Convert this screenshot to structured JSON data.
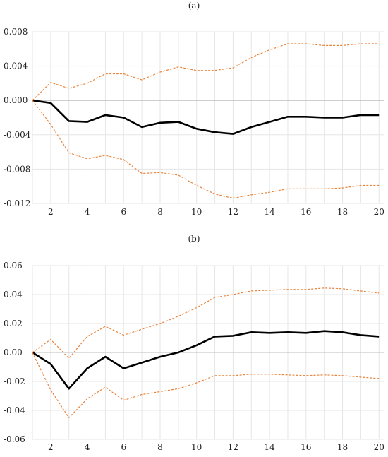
{
  "colors": {
    "response": "#000000",
    "band": "#e8843c",
    "grid": "#e6e6e6",
    "zero_axis": "#bdbdbd"
  },
  "chart_data": [
    {
      "type": "line",
      "title": "(a)",
      "xlabel": "",
      "ylabel": "",
      "x": [
        1,
        2,
        3,
        4,
        5,
        6,
        7,
        8,
        9,
        10,
        11,
        12,
        13,
        14,
        15,
        16,
        17,
        18,
        19,
        20
      ],
      "xticks": [
        2,
        4,
        6,
        8,
        10,
        12,
        14,
        16,
        18,
        20
      ],
      "ylim": [
        -0.012,
        0.008
      ],
      "yticks": [
        0.008,
        0.004,
        0.0,
        -0.004,
        -0.008,
        -0.012
      ],
      "ytick_labels": [
        "0.008",
        "0.004",
        "0.000",
        "-0.004",
        "-0.008",
        "-0.012"
      ],
      "grid": true,
      "series": [
        {
          "style": "solid",
          "color": "#000000",
          "values": [
            0.0,
            -0.0003,
            -0.0024,
            -0.0025,
            -0.0017,
            -0.002,
            -0.0031,
            -0.0026,
            -0.0025,
            -0.0033,
            -0.0037,
            -0.0039,
            -0.0031,
            -0.0025,
            -0.0019,
            -0.0019,
            -0.002,
            -0.002,
            -0.0017,
            -0.0017
          ]
        },
        {
          "style": "dashed",
          "color": "#e8843c",
          "values": [
            0.0,
            0.0021,
            0.0014,
            0.002,
            0.0031,
            0.0031,
            0.0024,
            0.0033,
            0.0039,
            0.0035,
            0.0035,
            0.0038,
            0.005,
            0.0059,
            0.0066,
            0.0066,
            0.0064,
            0.0064,
            0.0066,
            0.0066
          ]
        },
        {
          "style": "dashed",
          "color": "#e8843c",
          "values": [
            0.0,
            -0.0028,
            -0.0061,
            -0.0068,
            -0.0064,
            -0.0069,
            -0.0085,
            -0.0084,
            -0.0087,
            -0.0099,
            -0.0109,
            -0.0114,
            -0.011,
            -0.0107,
            -0.0103,
            -0.0103,
            -0.0103,
            -0.0102,
            -0.0099,
            -0.0099
          ]
        }
      ]
    },
    {
      "type": "line",
      "title": "(b)",
      "xlabel": "",
      "ylabel": "",
      "x": [
        1,
        2,
        3,
        4,
        5,
        6,
        7,
        8,
        9,
        10,
        11,
        12,
        13,
        14,
        15,
        16,
        17,
        18,
        19,
        20
      ],
      "xticks": [
        2,
        4,
        6,
        8,
        10,
        12,
        14,
        16,
        18,
        20
      ],
      "ylim": [
        -0.06,
        0.06
      ],
      "yticks": [
        0.06,
        0.04,
        0.02,
        0.0,
        -0.02,
        -0.04,
        -0.06
      ],
      "ytick_labels": [
        "0.06",
        "0.04",
        "0.02",
        "0.00",
        "-0.02",
        "-0.04",
        "-0.06"
      ],
      "grid": true,
      "series": [
        {
          "style": "solid",
          "color": "#000000",
          "values": [
            0.0,
            -0.008,
            -0.025,
            -0.011,
            -0.003,
            -0.011,
            -0.007,
            -0.003,
            0.0,
            0.005,
            0.011,
            0.0115,
            0.014,
            0.0135,
            0.014,
            0.0135,
            0.0148,
            0.014,
            0.012,
            0.011
          ]
        },
        {
          "style": "dashed",
          "color": "#e8843c",
          "values": [
            0.0,
            0.009,
            -0.004,
            0.011,
            0.018,
            0.012,
            0.016,
            0.02,
            0.025,
            0.031,
            0.038,
            0.04,
            0.0425,
            0.043,
            0.0435,
            0.0435,
            0.0445,
            0.044,
            0.0425,
            0.041
          ]
        },
        {
          "style": "dashed",
          "color": "#e8843c",
          "values": [
            0.0,
            -0.026,
            -0.045,
            -0.032,
            -0.024,
            -0.033,
            -0.029,
            -0.027,
            -0.025,
            -0.021,
            -0.016,
            -0.016,
            -0.015,
            -0.015,
            -0.0155,
            -0.016,
            -0.0155,
            -0.016,
            -0.017,
            -0.018
          ]
        }
      ]
    }
  ]
}
